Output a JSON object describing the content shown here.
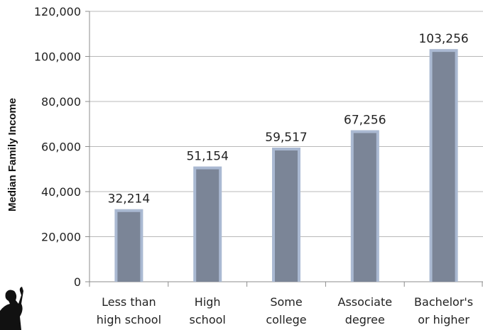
{
  "chart_data": {
    "type": "bar",
    "title": "",
    "xlabel": "",
    "ylabel": "Median Family Income",
    "categories": [
      [
        "Less than",
        "high school"
      ],
      [
        "High",
        "school"
      ],
      [
        "Some",
        "college"
      ],
      [
        "Associate",
        "degree"
      ],
      [
        "Bachelor's",
        "or higher"
      ]
    ],
    "values": [
      32214,
      51154,
      59517,
      67256,
      103256
    ],
    "value_labels": [
      "32,214",
      "51,154",
      "59,517",
      "67,256",
      "103,256"
    ],
    "ylim": [
      0,
      120000
    ],
    "yticks": [
      0,
      20000,
      40000,
      60000,
      80000,
      100000,
      120000
    ],
    "ytick_labels": [
      "0",
      "20,000",
      "40,000",
      "60,000",
      "80,000",
      "100,000",
      "120,000"
    ],
    "grid": true,
    "legend": "none",
    "colors": {
      "bar_fill": "#7b8597",
      "bar_border": "#aab9d2",
      "grid": "#b8b8b8",
      "axis": "#8c8c8c"
    }
  },
  "decoration": {
    "icon": "person-silhouette-icon"
  }
}
